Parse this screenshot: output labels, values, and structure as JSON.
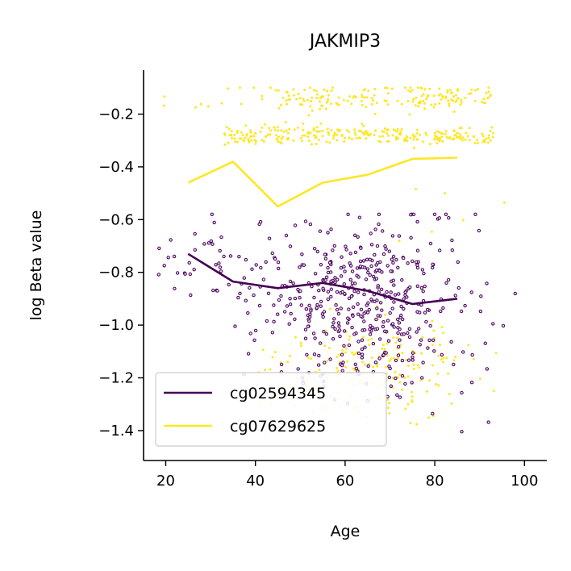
{
  "chart_data": {
    "type": "scatter",
    "title": "JAKMIP3",
    "xlabel": "Age",
    "ylabel": "log Beta value",
    "xlim": [
      15,
      105
    ],
    "ylim": [
      -1.52,
      -0.03
    ],
    "xticks": [
      20,
      40,
      60,
      80,
      100
    ],
    "yticks": [
      -1.4,
      -1.2,
      -1.0,
      -0.8,
      -0.6,
      -0.4,
      -0.2
    ],
    "grid": false,
    "legend_position": "lower-left",
    "series": [
      {
        "name": "cg02594345",
        "color": "#440154",
        "trend": {
          "x": [
            25,
            35,
            45,
            55,
            65,
            75,
            85
          ],
          "y": [
            -0.73,
            -0.835,
            -0.86,
            -0.84,
            -0.87,
            -0.92,
            -0.9
          ]
        },
        "scatter_summary": {
          "x_range": [
            18,
            101
          ],
          "y_range": [
            -1.44,
            -0.58
          ],
          "center_x": 62,
          "center_y": -0.9,
          "n": 520
        }
      },
      {
        "name": "cg07629625",
        "color": "#fde725",
        "trend": {
          "x": [
            25,
            35,
            45,
            55,
            65,
            75,
            85
          ],
          "y": [
            -0.46,
            -0.38,
            -0.55,
            -0.46,
            -0.43,
            -0.37,
            -0.365
          ]
        },
        "scatter_summary": {
          "x_range": [
            18,
            101
          ],
          "y_range": [
            -1.45,
            -0.1
          ],
          "clusters_y": [
            -0.14,
            -0.28,
            -1.15
          ],
          "n": 650
        }
      }
    ]
  }
}
